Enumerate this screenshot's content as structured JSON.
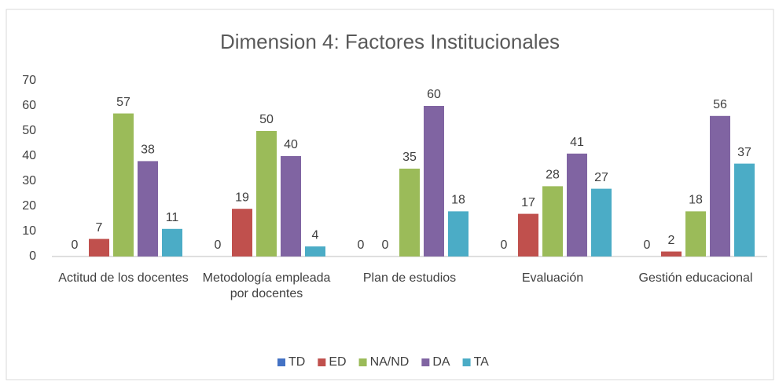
{
  "chart_data": {
    "type": "bar",
    "title": "Dimension 4: Factores Institucionales",
    "categories": [
      "Actitud de los docentes",
      "Metodología empleada por docentes",
      "Plan de estudios",
      "Evaluación",
      "Gestión educacional"
    ],
    "series": [
      {
        "name": "TD",
        "color": "#4472c4",
        "values": [
          0,
          0,
          0,
          0,
          0
        ]
      },
      {
        "name": "ED",
        "color": "#c0504d",
        "values": [
          7,
          19,
          0,
          17,
          2
        ]
      },
      {
        "name": "NA/ND",
        "color": "#9bbb59",
        "values": [
          57,
          50,
          35,
          28,
          18
        ]
      },
      {
        "name": "DA",
        "color": "#8064a2",
        "values": [
          38,
          40,
          60,
          41,
          56
        ]
      },
      {
        "name": "TA",
        "color": "#4bacc6",
        "values": [
          11,
          4,
          18,
          27,
          37
        ]
      }
    ],
    "ylim": [
      0,
      70
    ],
    "yticks": [
      0,
      10,
      20,
      30,
      40,
      50,
      60,
      70
    ],
    "grid": false,
    "legend": "bottom"
  }
}
